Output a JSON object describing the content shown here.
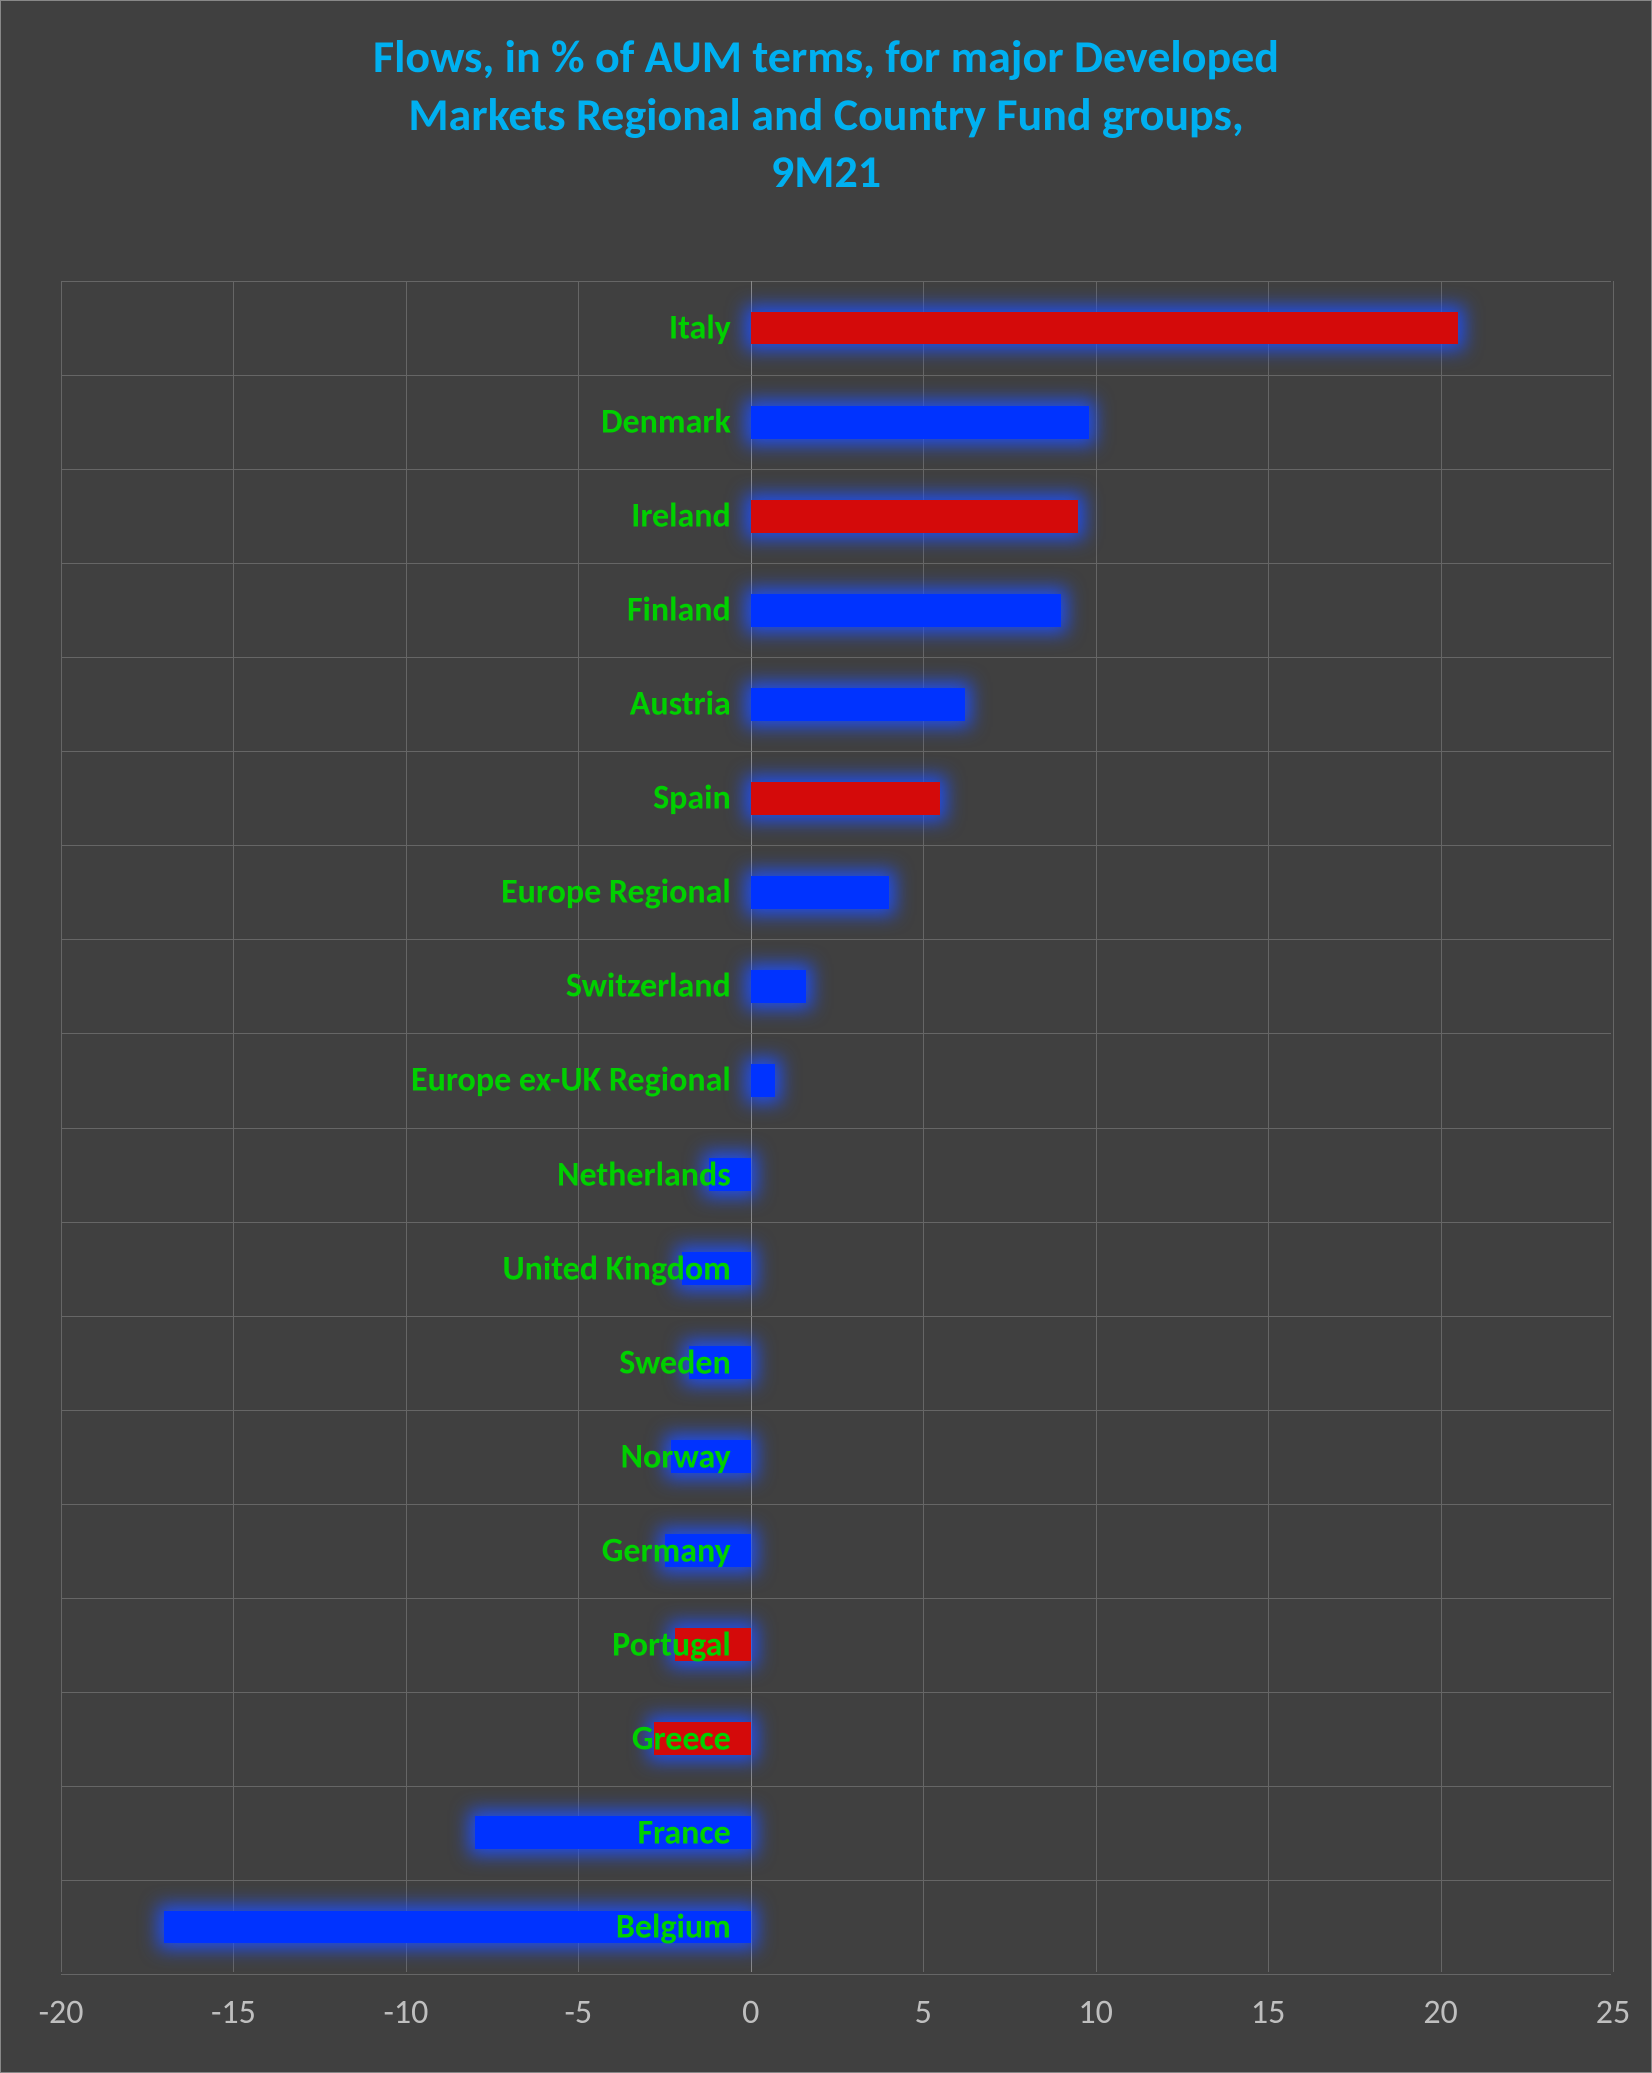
{
  "chart": {
    "type": "bar",
    "orientation": "horizontal",
    "title_lines": [
      "Flows, in % of AUM terms, for major Developed",
      "Markets Regional and Country Fund groups,",
      "9M21"
    ],
    "title_color": "#00b0f0",
    "title_fontsize": 46,
    "background_color": "#404040",
    "grid_color": "#666666",
    "zero_line_color": "#888888",
    "tick_label_color": "#bfbfbf",
    "category_label_color": "#00d000",
    "category_fontsize": 34,
    "tick_fontsize": 34,
    "bar_colors": {
      "blue": "#0033ff",
      "red": "#d40a0a"
    },
    "glow_color": "rgba(30,80,255,0.9)",
    "xlim": [
      -20,
      25
    ],
    "xtick_step": 5,
    "xticks": [
      -20,
      -15,
      -10,
      -5,
      0,
      5,
      10,
      15,
      20,
      25
    ],
    "bar_height_ratio": 0.35,
    "data": [
      {
        "label": "Italy",
        "value": 20.5,
        "color": "red"
      },
      {
        "label": "Denmark",
        "value": 9.8,
        "color": "blue"
      },
      {
        "label": "Ireland",
        "value": 9.5,
        "color": "red"
      },
      {
        "label": "Finland",
        "value": 9.0,
        "color": "blue"
      },
      {
        "label": "Austria",
        "value": 6.2,
        "color": "blue"
      },
      {
        "label": "Spain",
        "value": 5.5,
        "color": "red"
      },
      {
        "label": "Europe Regional",
        "value": 4.0,
        "color": "blue"
      },
      {
        "label": "Switzerland",
        "value": 1.6,
        "color": "blue"
      },
      {
        "label": "Europe ex-UK Regional",
        "value": 0.7,
        "color": "blue"
      },
      {
        "label": "Netherlands",
        "value": -1.2,
        "color": "blue"
      },
      {
        "label": "United Kingdom",
        "value": -2.0,
        "color": "blue"
      },
      {
        "label": "Sweden",
        "value": -1.8,
        "color": "blue"
      },
      {
        "label": "Norway",
        "value": -2.3,
        "color": "blue"
      },
      {
        "label": "Germany",
        "value": -2.5,
        "color": "blue"
      },
      {
        "label": "Portugal",
        "value": -2.2,
        "color": "red"
      },
      {
        "label": "Greece",
        "value": -2.8,
        "color": "red"
      },
      {
        "label": "France",
        "value": -8.0,
        "color": "blue"
      },
      {
        "label": "Belgium",
        "value": -17.0,
        "color": "blue"
      }
    ]
  }
}
